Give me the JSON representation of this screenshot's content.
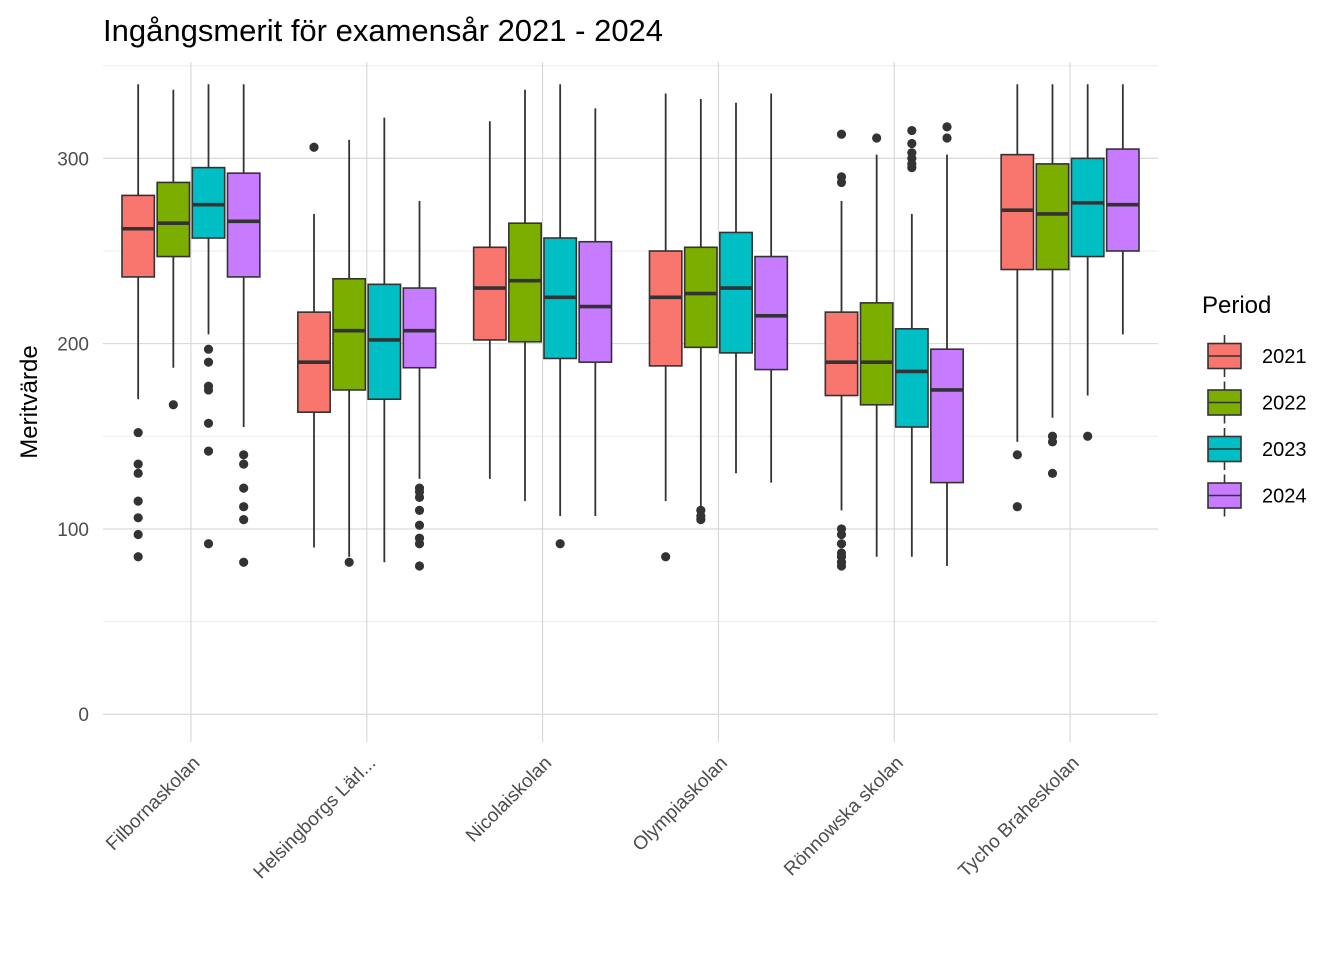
{
  "chart_data": {
    "type": "boxplot",
    "title": "Ingångsmerit för examensår 2021 - 2024",
    "ylabel": "Meritvärde",
    "xlabel": "",
    "ylim": [
      -15,
      352
    ],
    "yticks": [
      0,
      100,
      200,
      300
    ],
    "grid": true,
    "legend": {
      "title": "Period",
      "position": "right"
    },
    "categories": [
      "Filbornaskolan",
      "Helsingborgs Lärl...",
      "Nicolaiskolan",
      "Olympiaskolan",
      "Rönnowska skolan",
      "Tycho Braheskolan"
    ],
    "series": [
      {
        "name": "2021",
        "color": "#F8766D",
        "boxes": [
          {
            "min": 170,
            "q1": 236,
            "median": 262,
            "q3": 280,
            "max": 340,
            "outliers": [
              85,
              97,
              106,
              115,
              130,
              135,
              152
            ]
          },
          {
            "min": 90,
            "q1": 163,
            "median": 190,
            "q3": 217,
            "max": 270,
            "outliers": [
              306
            ]
          },
          {
            "min": 127,
            "q1": 202,
            "median": 230,
            "q3": 252,
            "max": 320,
            "outliers": []
          },
          {
            "min": 115,
            "q1": 188,
            "median": 225,
            "q3": 250,
            "max": 335,
            "outliers": [
              85
            ]
          },
          {
            "min": 110,
            "q1": 172,
            "median": 190,
            "q3": 217,
            "max": 277,
            "outliers": [
              80,
              82,
              85,
              87,
              92,
              97,
              100,
              287,
              290,
              313
            ]
          },
          {
            "min": 147,
            "q1": 240,
            "median": 272,
            "q3": 302,
            "max": 340,
            "outliers": [
              112,
              140
            ]
          }
        ]
      },
      {
        "name": "2022",
        "color": "#7CAE00",
        "boxes": [
          {
            "min": 187,
            "q1": 247,
            "median": 265,
            "q3": 287,
            "max": 337,
            "outliers": [
              167
            ]
          },
          {
            "min": 85,
            "q1": 175,
            "median": 207,
            "q3": 235,
            "max": 310,
            "outliers": [
              82
            ]
          },
          {
            "min": 115,
            "q1": 201,
            "median": 234,
            "q3": 265,
            "max": 337,
            "outliers": []
          },
          {
            "min": 112,
            "q1": 198,
            "median": 227,
            "q3": 252,
            "max": 332,
            "outliers": [
              105,
              107,
              110
            ]
          },
          {
            "min": 85,
            "q1": 167,
            "median": 190,
            "q3": 222,
            "max": 302,
            "outliers": [
              311
            ]
          },
          {
            "min": 160,
            "q1": 240,
            "median": 270,
            "q3": 297,
            "max": 340,
            "outliers": [
              130,
              147,
              150
            ]
          }
        ]
      },
      {
        "name": "2023",
        "color": "#00BFC4",
        "boxes": [
          {
            "min": 205,
            "q1": 257,
            "median": 275,
            "q3": 295,
            "max": 340,
            "outliers": [
              92,
              142,
              157,
              175,
              177,
              190,
              197
            ]
          },
          {
            "min": 82,
            "q1": 170,
            "median": 202,
            "q3": 232,
            "max": 322,
            "outliers": []
          },
          {
            "min": 107,
            "q1": 192,
            "median": 225,
            "q3": 257,
            "max": 340,
            "outliers": [
              92
            ]
          },
          {
            "min": 130,
            "q1": 195,
            "median": 230,
            "q3": 260,
            "max": 330,
            "outliers": []
          },
          {
            "min": 85,
            "q1": 155,
            "median": 185,
            "q3": 208,
            "max": 270,
            "outliers": [
              295,
              297,
              300,
              303,
              308,
              315
            ]
          },
          {
            "min": 172,
            "q1": 247,
            "median": 276,
            "q3": 300,
            "max": 340,
            "outliers": [
              150
            ]
          }
        ]
      },
      {
        "name": "2024",
        "color": "#C77CFF",
        "boxes": [
          {
            "min": 155,
            "q1": 236,
            "median": 266,
            "q3": 292,
            "max": 340,
            "outliers": [
              82,
              105,
              112,
              122,
              135,
              140
            ]
          },
          {
            "min": 127,
            "q1": 187,
            "median": 207,
            "q3": 230,
            "max": 277,
            "outliers": [
              80,
              92,
              95,
              102,
              110,
              117,
              120,
              122
            ]
          },
          {
            "min": 107,
            "q1": 190,
            "median": 220,
            "q3": 255,
            "max": 327,
            "outliers": []
          },
          {
            "min": 125,
            "q1": 186,
            "median": 215,
            "q3": 247,
            "max": 335,
            "outliers": []
          },
          {
            "min": 80,
            "q1": 125,
            "median": 175,
            "q3": 197,
            "max": 302,
            "outliers": [
              311,
              317
            ]
          },
          {
            "min": 205,
            "q1": 250,
            "median": 275,
            "q3": 305,
            "max": 340,
            "outliers": []
          }
        ]
      }
    ]
  }
}
